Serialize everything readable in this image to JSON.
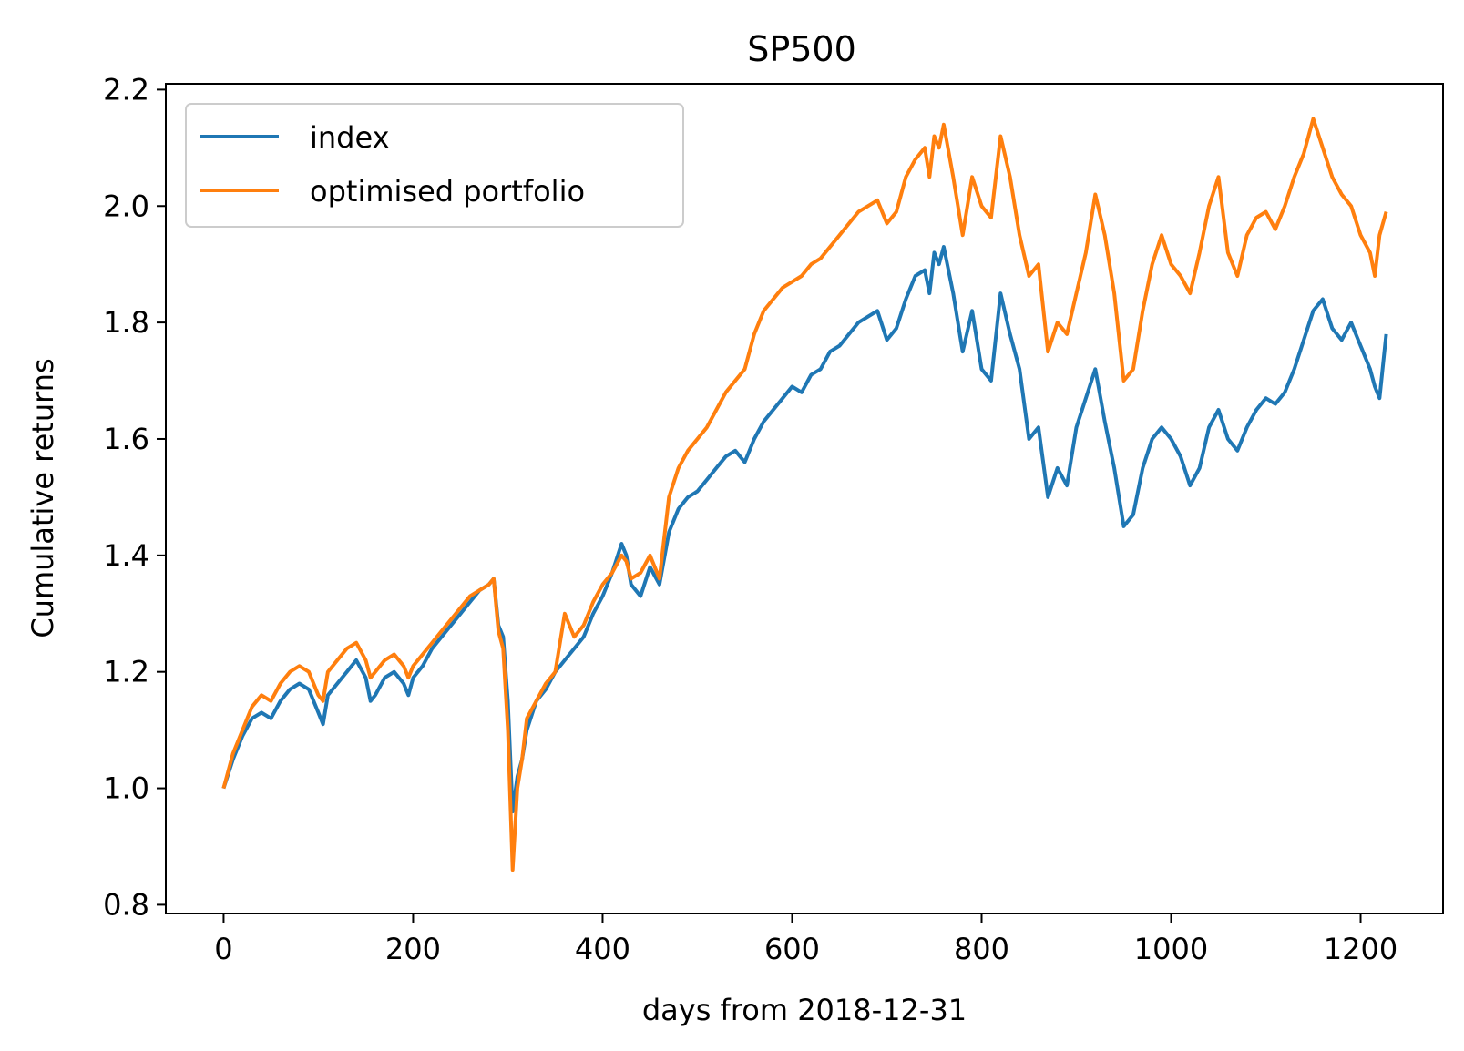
{
  "chart_data": {
    "type": "line",
    "title": "SP500",
    "xlabel": "days from 2018-12-31",
    "ylabel": "Cumulative returns",
    "xlim": [
      -61,
      1287
    ],
    "ylim": [
      0.785,
      2.21
    ],
    "xticks": [
      0,
      200,
      400,
      600,
      800,
      1000,
      1200
    ],
    "xtick_labels": [
      "0",
      "200",
      "400",
      "600",
      "800",
      "1000",
      "1200"
    ],
    "yticks": [
      0.8,
      1.0,
      1.2,
      1.4,
      1.6,
      1.8,
      2.0,
      2.2
    ],
    "ytick_labels": [
      "0.8",
      "1.0",
      "1.2",
      "1.4",
      "1.6",
      "1.8",
      "2.0",
      "2.2"
    ],
    "grid": false,
    "legend_position": "top-left",
    "series": [
      {
        "name": "index",
        "color": "#1f77b4",
        "x": [
          0,
          10,
          20,
          30,
          40,
          50,
          60,
          70,
          80,
          90,
          100,
          105,
          110,
          120,
          130,
          140,
          150,
          155,
          160,
          170,
          180,
          190,
          195,
          200,
          210,
          220,
          230,
          240,
          250,
          260,
          270,
          280,
          285,
          290,
          295,
          300,
          305,
          310,
          315,
          320,
          330,
          340,
          350,
          360,
          370,
          380,
          390,
          400,
          410,
          420,
          425,
          430,
          440,
          450,
          460,
          470,
          480,
          490,
          500,
          510,
          520,
          530,
          540,
          550,
          560,
          570,
          580,
          590,
          600,
          610,
          620,
          630,
          640,
          650,
          660,
          670,
          680,
          690,
          700,
          710,
          720,
          730,
          740,
          745,
          750,
          755,
          760,
          770,
          780,
          790,
          800,
          810,
          820,
          830,
          840,
          850,
          860,
          870,
          880,
          890,
          900,
          910,
          920,
          930,
          940,
          950,
          960,
          970,
          980,
          990,
          1000,
          1010,
          1020,
          1030,
          1040,
          1050,
          1060,
          1070,
          1080,
          1090,
          1100,
          1110,
          1120,
          1130,
          1140,
          1150,
          1160,
          1170,
          1180,
          1190,
          1200,
          1210,
          1215,
          1220,
          1227
        ],
        "y": [
          1.0,
          1.05,
          1.09,
          1.12,
          1.13,
          1.12,
          1.15,
          1.17,
          1.18,
          1.17,
          1.13,
          1.11,
          1.16,
          1.18,
          1.2,
          1.22,
          1.19,
          1.15,
          1.16,
          1.19,
          1.2,
          1.18,
          1.16,
          1.19,
          1.21,
          1.24,
          1.26,
          1.28,
          1.3,
          1.32,
          1.34,
          1.35,
          1.36,
          1.28,
          1.26,
          1.15,
          0.96,
          1.02,
          1.05,
          1.1,
          1.15,
          1.17,
          1.2,
          1.22,
          1.24,
          1.26,
          1.3,
          1.33,
          1.37,
          1.42,
          1.4,
          1.35,
          1.33,
          1.38,
          1.35,
          1.44,
          1.48,
          1.5,
          1.51,
          1.53,
          1.55,
          1.57,
          1.58,
          1.56,
          1.6,
          1.63,
          1.65,
          1.67,
          1.69,
          1.68,
          1.71,
          1.72,
          1.75,
          1.76,
          1.78,
          1.8,
          1.81,
          1.82,
          1.77,
          1.79,
          1.84,
          1.88,
          1.89,
          1.85,
          1.92,
          1.9,
          1.93,
          1.85,
          1.75,
          1.82,
          1.72,
          1.7,
          1.85,
          1.78,
          1.72,
          1.6,
          1.62,
          1.5,
          1.55,
          1.52,
          1.62,
          1.67,
          1.72,
          1.63,
          1.55,
          1.45,
          1.47,
          1.55,
          1.6,
          1.62,
          1.6,
          1.57,
          1.52,
          1.55,
          1.62,
          1.65,
          1.6,
          1.58,
          1.62,
          1.65,
          1.67,
          1.66,
          1.68,
          1.72,
          1.77,
          1.82,
          1.84,
          1.79,
          1.77,
          1.8,
          1.76,
          1.72,
          1.69,
          1.67,
          1.78
        ]
      },
      {
        "name": "optimised portfolio",
        "color": "#ff7f0e",
        "x": [
          0,
          10,
          20,
          30,
          40,
          50,
          60,
          70,
          80,
          90,
          100,
          105,
          110,
          120,
          130,
          140,
          150,
          155,
          160,
          170,
          180,
          190,
          195,
          200,
          210,
          220,
          230,
          240,
          250,
          260,
          270,
          280,
          285,
          290,
          295,
          300,
          305,
          310,
          315,
          320,
          330,
          340,
          350,
          360,
          370,
          380,
          390,
          400,
          410,
          420,
          425,
          430,
          440,
          450,
          460,
          470,
          480,
          490,
          500,
          510,
          520,
          530,
          540,
          550,
          560,
          570,
          580,
          590,
          600,
          610,
          620,
          630,
          640,
          650,
          660,
          670,
          680,
          690,
          700,
          710,
          720,
          730,
          740,
          745,
          750,
          755,
          760,
          770,
          780,
          790,
          800,
          810,
          820,
          830,
          840,
          850,
          860,
          870,
          880,
          890,
          900,
          910,
          920,
          930,
          940,
          950,
          960,
          970,
          980,
          990,
          1000,
          1010,
          1020,
          1030,
          1040,
          1050,
          1060,
          1070,
          1080,
          1090,
          1100,
          1110,
          1120,
          1130,
          1140,
          1150,
          1160,
          1170,
          1180,
          1190,
          1200,
          1210,
          1215,
          1220,
          1227
        ],
        "y": [
          1.0,
          1.06,
          1.1,
          1.14,
          1.16,
          1.15,
          1.18,
          1.2,
          1.21,
          1.2,
          1.16,
          1.15,
          1.2,
          1.22,
          1.24,
          1.25,
          1.22,
          1.19,
          1.2,
          1.22,
          1.23,
          1.21,
          1.19,
          1.21,
          1.23,
          1.25,
          1.27,
          1.29,
          1.31,
          1.33,
          1.34,
          1.35,
          1.36,
          1.27,
          1.24,
          1.1,
          0.86,
          1.0,
          1.05,
          1.12,
          1.15,
          1.18,
          1.2,
          1.3,
          1.26,
          1.28,
          1.32,
          1.35,
          1.37,
          1.4,
          1.39,
          1.36,
          1.37,
          1.4,
          1.36,
          1.5,
          1.55,
          1.58,
          1.6,
          1.62,
          1.65,
          1.68,
          1.7,
          1.72,
          1.78,
          1.82,
          1.84,
          1.86,
          1.87,
          1.88,
          1.9,
          1.91,
          1.93,
          1.95,
          1.97,
          1.99,
          2.0,
          2.01,
          1.97,
          1.99,
          2.05,
          2.08,
          2.1,
          2.05,
          2.12,
          2.1,
          2.14,
          2.05,
          1.95,
          2.05,
          2.0,
          1.98,
          2.12,
          2.05,
          1.95,
          1.88,
          1.9,
          1.75,
          1.8,
          1.78,
          1.85,
          1.92,
          2.02,
          1.95,
          1.85,
          1.7,
          1.72,
          1.82,
          1.9,
          1.95,
          1.9,
          1.88,
          1.85,
          1.92,
          2.0,
          2.05,
          1.92,
          1.88,
          1.95,
          1.98,
          1.99,
          1.96,
          2.0,
          2.05,
          2.09,
          2.15,
          2.1,
          2.05,
          2.02,
          2.0,
          1.95,
          1.92,
          1.88,
          1.95,
          1.99
        ]
      }
    ]
  }
}
